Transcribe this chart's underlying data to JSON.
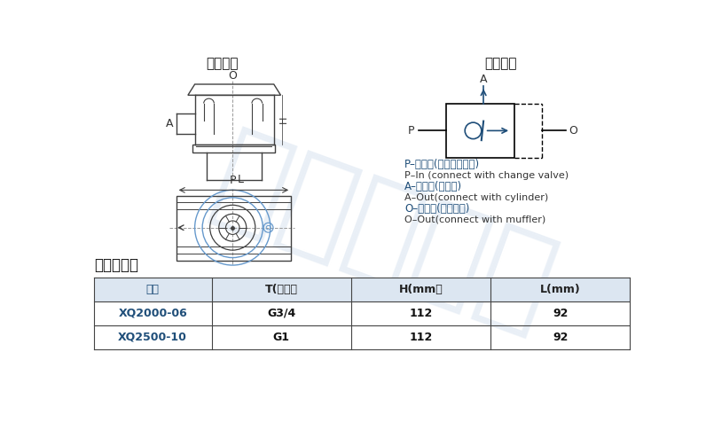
{
  "bg_color": "#ffffff",
  "watermark_color": "#b8cce4",
  "section_title_left": "外形尺寸",
  "section_title_right": "图形符号",
  "dimension_title": "外形尺寸图",
  "table_header": [
    "型号",
    "T(接口）",
    "H(mm）",
    "L(mm)"
  ],
  "table_rows": [
    [
      "XQ2000-06",
      "G3/4",
      "112",
      "92"
    ],
    [
      "XQ2500-10",
      "G1",
      "112",
      "92"
    ]
  ],
  "header_bg": "#dce6f1",
  "header_text_color": "#1f4e79",
  "model_color": "#1f4e79",
  "draw_color": "#404040",
  "draw_lw": 1.0,
  "sym_color_solid": "#000000",
  "sym_color_blue": "#1f4e79",
  "annotation_chinese_color": "#1f4e79",
  "annotation_english_color": "#333333",
  "annotations": [
    [
      "P–进气口(接换向阀输出)",
      true
    ],
    [
      "P–In (connect with change valve)",
      false
    ],
    [
      "A–出气孔(接气缸)",
      true
    ],
    [
      "A–Out(connect with cylinder)",
      false
    ],
    [
      "O–排气口(接消声器)",
      true
    ],
    [
      "O–Out(connect with muffler)",
      false
    ]
  ]
}
